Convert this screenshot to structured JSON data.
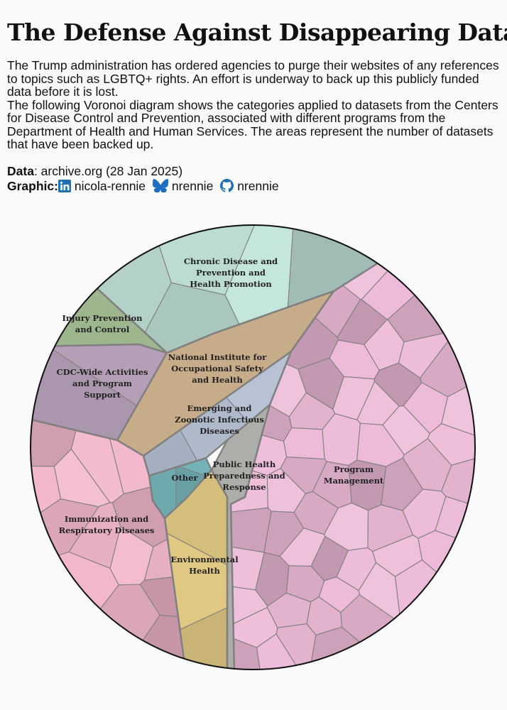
{
  "title": "The Defense Against Disappearing Data",
  "subtitle": [
    "The Trump administration has ordered agencies to purge their websites of any references to topics such as LGBTQ+ rights. An effort is underway to back up this publicly funded data before it is lost.",
    "The following Voronoi diagram shows the categories applied to datasets from the Centers for Disease Control and Prevention, associated with different programs from the Department of Health and Human Services. The areas represent the number of datasets that have been backed up."
  ],
  "caption": {
    "data_label": "Data",
    "data_value": ": archive.org (28 Jan 2025)",
    "graphic_label": "Graphic",
    "graphic_sep": ":",
    "linkedin": "nicola-rennie",
    "bluesky": "nrennie",
    "github": "nrennie"
  },
  "icons": {
    "linkedin": "linkedin-icon",
    "bluesky": "bluesky-icon",
    "github": "github-icon"
  },
  "chart_data": {
    "type": "voronoi-treemap",
    "categories": [
      {
        "name": "Chronic Disease and Prevention and Health Promotion",
        "lines": [
          "Chronic Disease and",
          "Prevention and",
          "Health Promotion"
        ],
        "color": "#c5e6dc",
        "cells": 5
      },
      {
        "name": "Injury Prevention and Control",
        "lines": [
          "Injury Prevention",
          "and Control"
        ],
        "color": "#c1dfae",
        "cells": 1
      },
      {
        "name": "CDC-Wide Activities and Program Support",
        "lines": [
          "CDC-Wide Activities",
          "and Program",
          "Support"
        ],
        "color": "#d1b8d4",
        "cells": 2
      },
      {
        "name": "National Institute for Occupational Safety and Health",
        "lines": [
          "National Institute for",
          "Occupational Safety",
          "and Health"
        ],
        "color": "#f3d2a8",
        "cells": 1
      },
      {
        "name": "Emerging and Zoonotic Infectious Diseases",
        "lines": [
          "Emerging and",
          "Zoonotic Infectious",
          "Diseases"
        ],
        "color": "#c9d6ea",
        "cells": 3
      },
      {
        "name": "Public Health Preparedness and Response",
        "lines": [
          "Public Health",
          "Preparedness and",
          "Response"
        ],
        "color": "#d3d3cf",
        "cells": 1
      },
      {
        "name": "Other",
        "lines": [
          "Other"
        ],
        "color": "#7fc4c8",
        "cells": 3
      },
      {
        "name": "Immunization and Respiratory Diseases",
        "lines": [
          "Immunization and",
          "Respiratory Diseases"
        ],
        "color": "#f2b7cb",
        "cells": 14
      },
      {
        "name": "Environmental Health",
        "lines": [
          "Environmental",
          "Health"
        ],
        "color": "#f6dc8f",
        "cells": 3
      },
      {
        "name": "Program Management",
        "lines": [
          "Program",
          "Management"
        ],
        "color": "#edbad9",
        "cells": 60
      }
    ]
  }
}
